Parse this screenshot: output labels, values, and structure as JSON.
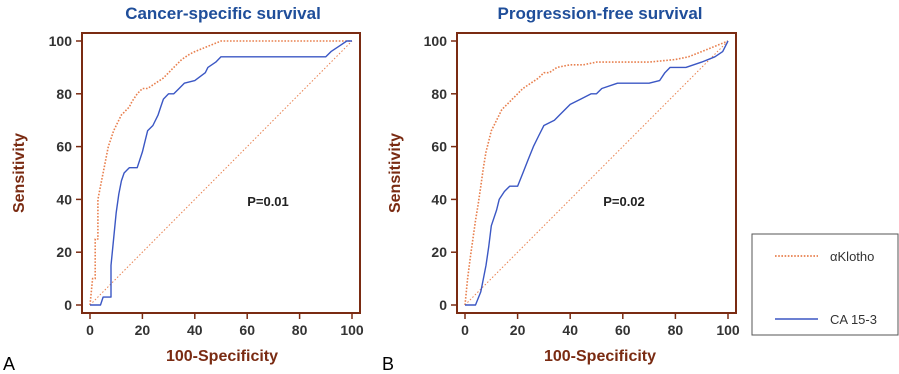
{
  "figure": {
    "legend": [
      {
        "label": "αKlotho",
        "color": "#e8804f",
        "style": "dotted"
      },
      {
        "label": "CA 15-3",
        "color": "#3b57c4",
        "style": "solid"
      }
    ]
  },
  "chart_data": [
    {
      "type": "line",
      "panel_label": "A",
      "title": "Cancer-specific survival",
      "xlabel": "100-Specificity",
      "ylabel": "Sensitivity",
      "xlim": [
        0,
        100
      ],
      "ylim": [
        0,
        100
      ],
      "xticks": [
        "0",
        "20",
        "40",
        "60",
        "80",
        "100"
      ],
      "yticks": [
        "0",
        "20",
        "40",
        "60",
        "80",
        "100"
      ],
      "annotation": "P=0.01",
      "reference_line": true,
      "series": [
        {
          "name": "αKlotho",
          "x": [
            0,
            1,
            2,
            2,
            3,
            3,
            4,
            5,
            6,
            7,
            8,
            9,
            10,
            11,
            12,
            13,
            14,
            15,
            16,
            18,
            20,
            22,
            25,
            28,
            30,
            32,
            35,
            38,
            40,
            45,
            50,
            55,
            60,
            70,
            80,
            90,
            95,
            100
          ],
          "y": [
            0,
            10,
            10,
            25,
            25,
            40,
            45,
            50,
            55,
            60,
            63,
            66,
            68,
            70,
            72,
            73,
            74,
            75,
            77,
            80,
            82,
            82,
            84,
            86,
            88,
            90,
            93,
            95,
            96,
            98,
            100,
            100,
            100,
            100,
            100,
            100,
            100,
            100
          ]
        },
        {
          "name": "CA 15-3",
          "x": [
            0,
            4,
            5,
            8,
            8,
            9,
            10,
            11,
            12,
            13,
            15,
            18,
            20,
            21,
            22,
            24,
            26,
            27,
            28,
            30,
            32,
            34,
            36,
            40,
            44,
            45,
            48,
            50,
            52,
            55,
            60,
            70,
            80,
            90,
            92,
            95,
            98,
            100
          ],
          "y": [
            0,
            0,
            3,
            3,
            15,
            25,
            35,
            42,
            47,
            50,
            52,
            52,
            58,
            62,
            66,
            68,
            72,
            75,
            78,
            80,
            80,
            82,
            84,
            85,
            88,
            90,
            92,
            94,
            94,
            94,
            94,
            94,
            94,
            94,
            96,
            98,
            100,
            100
          ]
        }
      ]
    },
    {
      "type": "line",
      "panel_label": "B",
      "title": "Progression-free survival",
      "xlabel": "100-Specificity",
      "ylabel": "Sensitivity",
      "xlim": [
        0,
        100
      ],
      "ylim": [
        0,
        100
      ],
      "xticks": [
        "0",
        "20",
        "40",
        "60",
        "80",
        "100"
      ],
      "yticks": [
        "0",
        "20",
        "40",
        "60",
        "80",
        "100"
      ],
      "annotation": "P=0.02",
      "reference_line": true,
      "series": [
        {
          "name": "αKlotho",
          "x": [
            0,
            1,
            2,
            3,
            4,
            5,
            6,
            7,
            8,
            9,
            10,
            12,
            14,
            16,
            18,
            20,
            22,
            25,
            28,
            30,
            32,
            35,
            40,
            45,
            50,
            60,
            70,
            80,
            85,
            90,
            95,
            100
          ],
          "y": [
            0,
            10,
            18,
            25,
            32,
            38,
            45,
            52,
            58,
            62,
            66,
            70,
            74,
            76,
            78,
            80,
            82,
            84,
            86,
            88,
            88,
            90,
            91,
            91,
            92,
            92,
            92,
            93,
            94,
            96,
            98,
            100
          ]
        },
        {
          "name": "CA 15-3",
          "x": [
            0,
            4,
            6,
            7,
            8,
            9,
            10,
            12,
            13,
            15,
            17,
            20,
            22,
            24,
            26,
            28,
            30,
            34,
            36,
            40,
            44,
            48,
            50,
            52,
            58,
            62,
            64,
            66,
            70,
            74,
            76,
            78,
            80,
            84,
            90,
            95,
            98,
            100
          ],
          "y": [
            0,
            0,
            5,
            10,
            15,
            22,
            30,
            36,
            40,
            43,
            45,
            45,
            50,
            55,
            60,
            64,
            68,
            70,
            72,
            76,
            78,
            80,
            80,
            82,
            84,
            84,
            84,
            84,
            84,
            85,
            88,
            90,
            90,
            90,
            92,
            94,
            96,
            100
          ]
        }
      ]
    }
  ]
}
